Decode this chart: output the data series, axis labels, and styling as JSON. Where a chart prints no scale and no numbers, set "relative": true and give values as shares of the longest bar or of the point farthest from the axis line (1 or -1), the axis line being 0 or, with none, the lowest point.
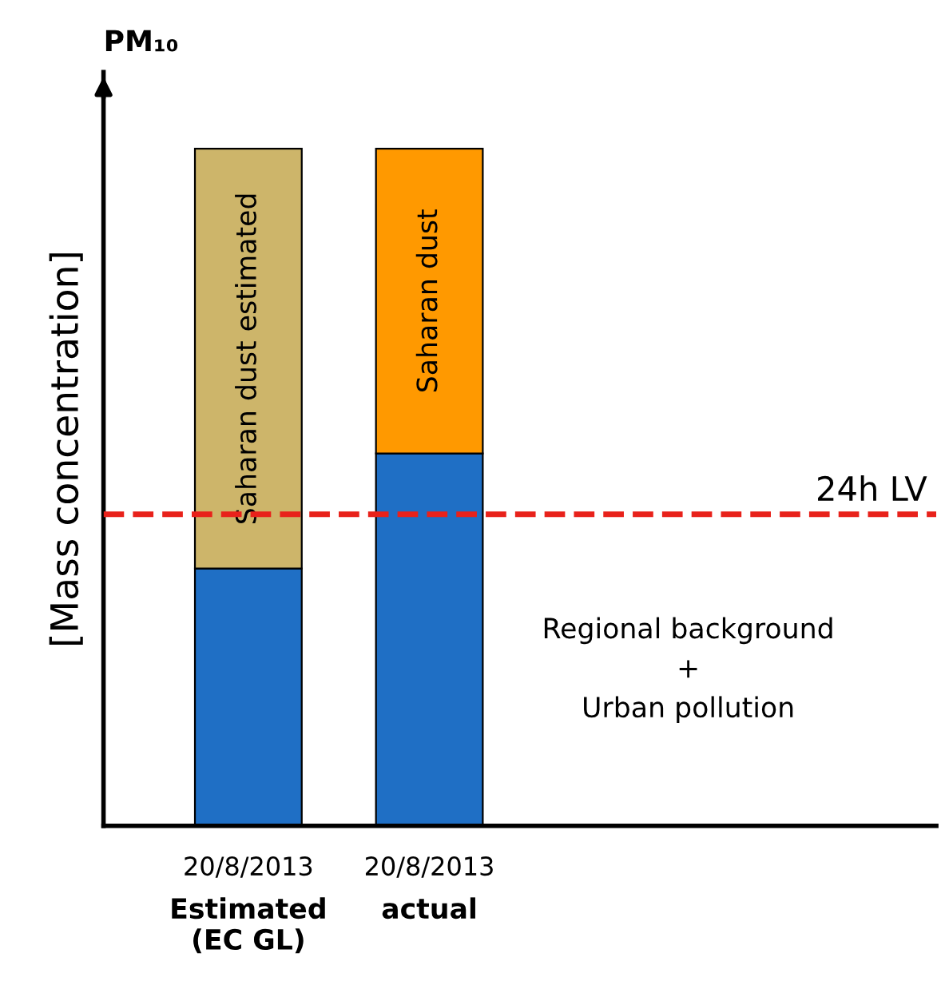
{
  "chart_data": {
    "type": "bar",
    "stacked": true,
    "relative": true,
    "title": "PM₁₀",
    "ylabel": "[Mass concentration]",
    "categories": [
      "20/8/2013\nEstimated\n(EC GL)",
      "20/8/2013\nactual"
    ],
    "series": [
      {
        "name": "Regional background\n+\nUrban pollution",
        "color": "#1f6fc5",
        "values": [
          0.38,
          0.55
        ]
      },
      {
        "colors": [
          "#cdb56a",
          "#ff9900"
        ],
        "values": [
          0.62,
          0.45
        ]
      }
    ],
    "annotations": [
      "Saharan dust estimated",
      "Saharan dust"
    ],
    "ref_lines": [
      {
        "axis": "y",
        "value": 0.46,
        "label": "24h LV",
        "color": "#e8221b",
        "line_style": "dashed"
      }
    ],
    "grid": false
  }
}
